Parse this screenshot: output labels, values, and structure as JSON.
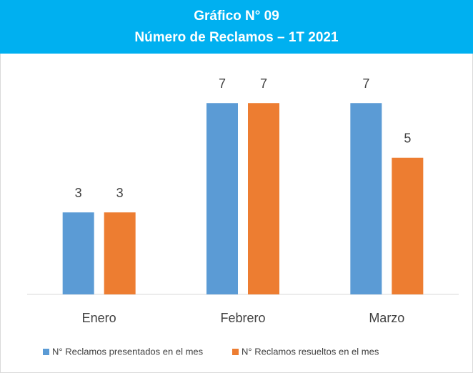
{
  "chart_data": {
    "type": "bar",
    "title": [
      "Gráfico N° 09",
      "Número de Reclamos – 1T 2021"
    ],
    "categories": [
      "Enero",
      "Febrero",
      "Marzo"
    ],
    "series": [
      {
        "name": "N° Reclamos presentados en el mes",
        "color": "#5b9bd5",
        "values": [
          3,
          7,
          7
        ]
      },
      {
        "name": "N° Reclamos resueltos en el mes",
        "color": "#ed7d31",
        "values": [
          3,
          7,
          5
        ]
      }
    ],
    "ylim": [
      0,
      8
    ],
    "legend": "bottom",
    "title_background": "#00b0f0"
  }
}
